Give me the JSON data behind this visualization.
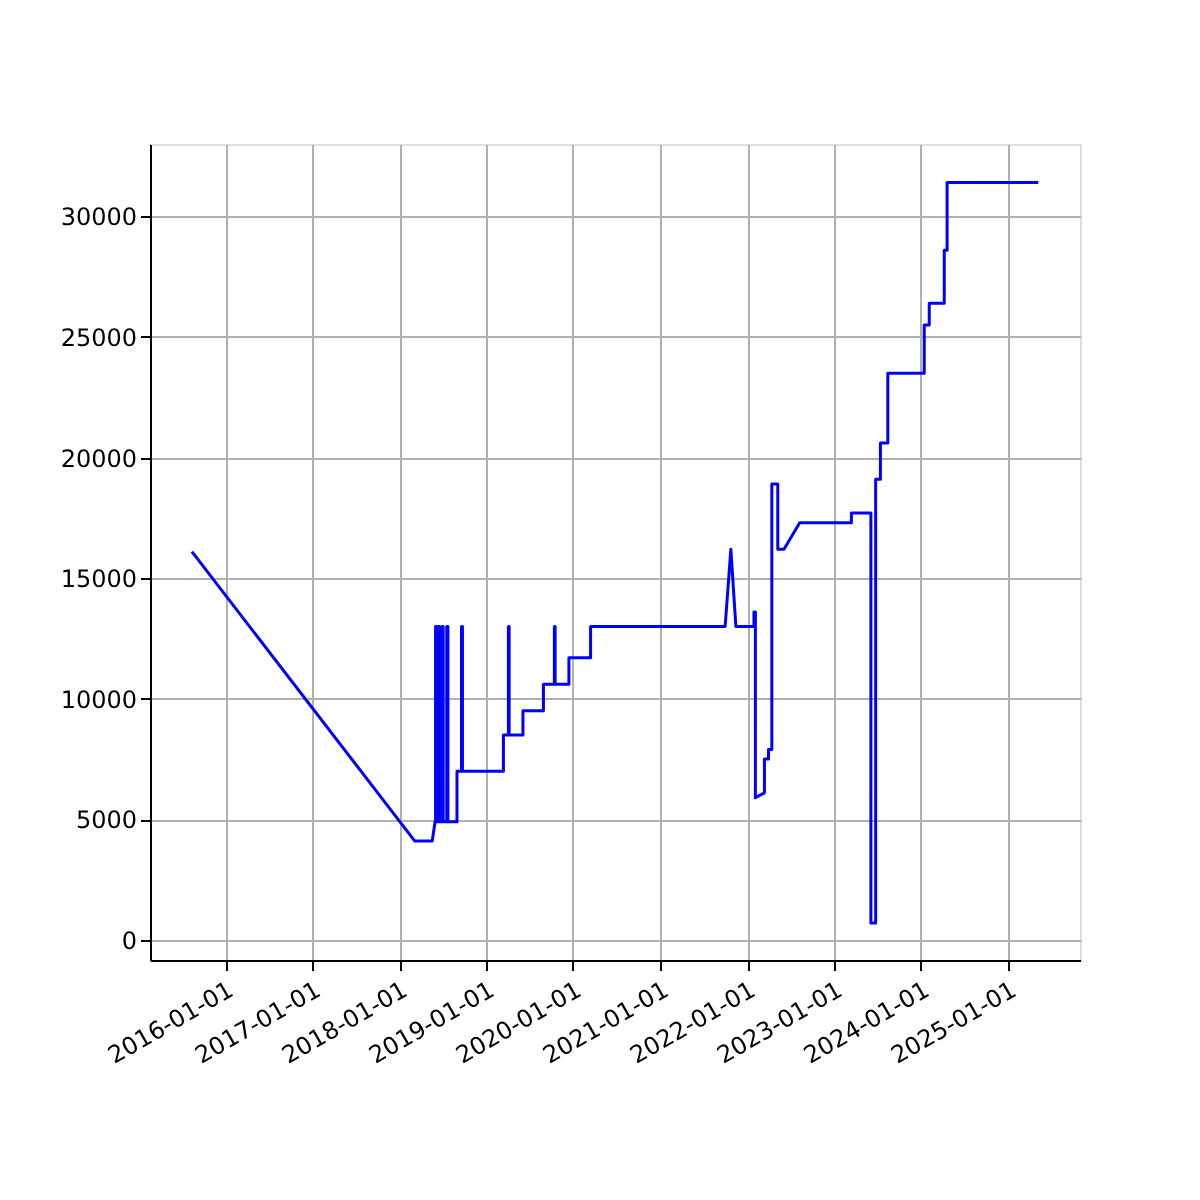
{
  "chart_data": {
    "type": "line",
    "x": [
      "2015-08-15",
      "2018-03-08",
      "2018-05-20",
      "2018-06-01",
      "2018-06-03",
      "2018-06-03",
      "2018-06-08",
      "2018-06-08",
      "2018-06-15",
      "2018-06-15",
      "2018-06-20",
      "2018-06-20",
      "2018-07-01",
      "2018-07-01",
      "2018-07-05",
      "2018-07-05",
      "2018-07-20",
      "2018-07-20",
      "2018-07-25",
      "2018-07-25",
      "2018-09-01",
      "2018-09-01",
      "2018-09-20",
      "2018-09-20",
      "2018-09-24",
      "2018-09-24",
      "2019-03-15",
      "2019-03-15",
      "2019-04-05",
      "2019-04-05",
      "2019-04-08",
      "2019-04-08",
      "2019-06-05",
      "2019-06-05",
      "2019-08-30",
      "2019-08-30",
      "2019-10-15",
      "2019-10-15",
      "2019-10-18",
      "2019-10-18",
      "2019-12-15",
      "2019-12-15",
      "2020-03-15",
      "2020-03-15",
      "2021-10-01",
      "2021-10-25",
      "2021-11-15",
      "2022-01-30",
      "2022-01-30",
      "2022-02-05",
      "2022-02-05",
      "2022-03-15",
      "2022-03-15",
      "2022-04-01",
      "2022-04-01",
      "2022-04-15",
      "2022-04-15",
      "2022-05-10",
      "2022-05-10",
      "2022-06-05",
      "2022-08-10",
      "2023-03-15",
      "2023-03-15",
      "2023-06-05",
      "2023-06-05",
      "2023-06-25",
      "2023-06-25",
      "2023-07-15",
      "2023-07-15",
      "2023-08-15",
      "2023-08-15",
      "2024-01-15",
      "2024-01-15",
      "2024-02-05",
      "2024-02-05",
      "2024-04-08",
      "2024-04-08",
      "2024-04-20",
      "2024-04-20",
      "2025-05-08"
    ],
    "series": [
      {
        "color": "#0000ff",
        "values": [
          16100,
          4100,
          4100,
          4900,
          4900,
          13000,
          13000,
          4900,
          4900,
          13000,
          13000,
          4900,
          4900,
          13000,
          13000,
          4900,
          4900,
          13000,
          13000,
          4900,
          4900,
          7000,
          7000,
          13000,
          13000,
          7000,
          7000,
          8500,
          8500,
          13000,
          13000,
          8500,
          8500,
          9500,
          9500,
          10600,
          10600,
          13000,
          13000,
          10600,
          10600,
          11700,
          11700,
          13000,
          13000,
          16200,
          13000,
          13000,
          13600,
          13600,
          5900,
          6100,
          7500,
          7500,
          7900,
          7900,
          18900,
          18900,
          16200,
          16200,
          17300,
          17300,
          17700,
          17700,
          700,
          700,
          19100,
          19100,
          20600,
          20600,
          23500,
          23500,
          25500,
          25500,
          26400,
          26400,
          28600,
          28600,
          31400,
          31400
        ]
      }
    ],
    "xlim": [
      "2015-02-20",
      "2025-10-30"
    ],
    "xticks": [
      "2016-01-01",
      "2017-01-01",
      "2018-01-01",
      "2019-01-01",
      "2020-01-01",
      "2021-01-01",
      "2022-01-01",
      "2023-01-01",
      "2024-01-01",
      "2025-01-01"
    ],
    "ylim": [
      -830,
      33000
    ],
    "yticks": [
      0,
      5000,
      10000,
      15000,
      20000,
      25000,
      30000
    ],
    "grid": true,
    "line_style": "solid",
    "marker": "none"
  }
}
